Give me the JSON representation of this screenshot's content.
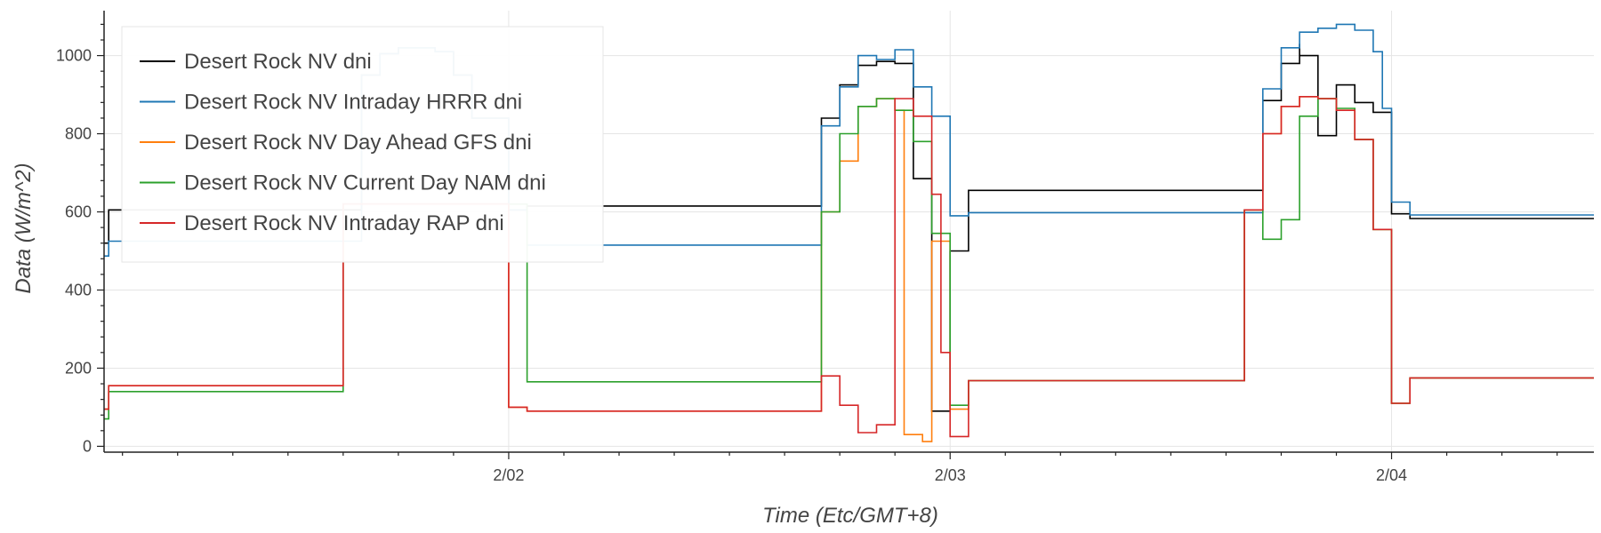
{
  "chart_data": {
    "type": "line",
    "step": true,
    "xlabel": "Time (Etc/GMT+8)",
    "ylabel": "Data (W/m^2)",
    "xlim": [
      "2020-02-01T02:00",
      "2020-02-04T11:00"
    ],
    "ylim": [
      -15,
      1115
    ],
    "x_ticks": [
      {
        "x": "2020-02-02T00:00",
        "label": "2/02"
      },
      {
        "x": "2020-02-03T00:00",
        "label": "2/03"
      },
      {
        "x": "2020-02-04T00:00",
        "label": "2/04"
      }
    ],
    "y_ticks": [
      0,
      200,
      400,
      600,
      800,
      1000
    ],
    "grid": true,
    "legend": {
      "position": "top-left"
    },
    "series": [
      {
        "name": "Desert Rock NV dni",
        "color": "#000000",
        "points": [
          [
            "2020-02-01T02:00",
            520
          ],
          [
            "2020-02-01T02:15",
            605
          ],
          [
            "2020-02-01T03:00",
            605
          ],
          [
            "2020-02-01T14:00",
            605
          ],
          [
            "2020-02-01T16:00",
            950
          ],
          [
            "2020-02-01T17:00",
            1005
          ],
          [
            "2020-02-01T18:00",
            1020
          ],
          [
            "2020-02-01T20:00",
            1010
          ],
          [
            "2020-02-01T21:00",
            950
          ],
          [
            "2020-02-01T22:00",
            840
          ],
          [
            "2020-02-02T00:00",
            605
          ],
          [
            "2020-02-02T01:00",
            615
          ],
          [
            "2020-02-02T17:00",
            615
          ],
          [
            "2020-02-02T17:00",
            840
          ],
          [
            "2020-02-02T18:00",
            925
          ],
          [
            "2020-02-02T19:00",
            975
          ],
          [
            "2020-02-02T20:00",
            985
          ],
          [
            "2020-02-02T21:00",
            980
          ],
          [
            "2020-02-02T22:00",
            685
          ],
          [
            "2020-02-02T23:00",
            90
          ],
          [
            "2020-02-03T00:00",
            450
          ],
          [
            "2020-02-03T00:00",
            500
          ],
          [
            "2020-02-03T01:00",
            655
          ],
          [
            "2020-02-03T16:00",
            655
          ],
          [
            "2020-02-03T17:00",
            885
          ],
          [
            "2020-02-03T18:00",
            980
          ],
          [
            "2020-02-03T19:00",
            1030
          ],
          [
            "2020-02-03T19:00",
            1000
          ],
          [
            "2020-02-03T20:00",
            1000
          ],
          [
            "2020-02-03T20:00",
            795
          ],
          [
            "2020-02-03T21:00",
            925
          ],
          [
            "2020-02-03T22:00",
            880
          ],
          [
            "2020-02-03T23:00",
            855
          ],
          [
            "2020-02-04T00:00",
            595
          ],
          [
            "2020-02-04T01:00",
            583
          ],
          [
            "2020-02-04T11:00",
            583
          ]
        ]
      },
      {
        "name": "Desert Rock NV Intraday HRRR dni",
        "color": "#1f77b4",
        "points": [
          [
            "2020-02-01T02:00",
            487
          ],
          [
            "2020-02-01T02:15",
            525
          ],
          [
            "2020-02-01T03:00",
            525
          ],
          [
            "2020-02-01T14:00",
            525
          ],
          [
            "2020-02-01T16:00",
            950
          ],
          [
            "2020-02-01T17:00",
            1005
          ],
          [
            "2020-02-01T18:00",
            1020
          ],
          [
            "2020-02-01T20:00",
            1010
          ],
          [
            "2020-02-01T21:00",
            950
          ],
          [
            "2020-02-01T22:00",
            840
          ],
          [
            "2020-02-02T00:00",
            605
          ],
          [
            "2020-02-02T01:00",
            515
          ],
          [
            "2020-02-02T17:00",
            515
          ],
          [
            "2020-02-02T17:00",
            820
          ],
          [
            "2020-02-02T18:00",
            920
          ],
          [
            "2020-02-02T19:00",
            1000
          ],
          [
            "2020-02-02T20:00",
            990
          ],
          [
            "2020-02-02T21:00",
            1015
          ],
          [
            "2020-02-02T22:00",
            920
          ],
          [
            "2020-02-02T23:00",
            845
          ],
          [
            "2020-02-03T00:00",
            590
          ],
          [
            "2020-02-03T01:00",
            598
          ],
          [
            "2020-02-03T16:00",
            598
          ],
          [
            "2020-02-03T17:00",
            915
          ],
          [
            "2020-02-03T18:00",
            1020
          ],
          [
            "2020-02-03T19:00",
            1060
          ],
          [
            "2020-02-03T20:00",
            1070
          ],
          [
            "2020-02-03T21:00",
            1080
          ],
          [
            "2020-02-03T22:00",
            1065
          ],
          [
            "2020-02-03T23:00",
            1010
          ],
          [
            "2020-02-03T23:30",
            865
          ],
          [
            "2020-02-04T00:00",
            625
          ],
          [
            "2020-02-04T01:00",
            592
          ],
          [
            "2020-02-04T11:00",
            592
          ]
        ]
      },
      {
        "name": "Desert Rock NV Day Ahead GFS dni",
        "color": "#ff7f0e",
        "points": [
          [
            "2020-02-01T02:00",
            95
          ],
          [
            "2020-02-01T02:15",
            155
          ],
          [
            "2020-02-01T03:00",
            155
          ],
          [
            "2020-02-01T15:00",
            155
          ],
          [
            "2020-02-01T15:00",
            620
          ],
          [
            "2020-02-02T00:00",
            620
          ],
          [
            "2020-02-02T00:00",
            100
          ],
          [
            "2020-02-02T01:00",
            90
          ],
          [
            "2020-02-02T17:00",
            90
          ],
          [
            "2020-02-02T17:00",
            600
          ],
          [
            "2020-02-02T18:00",
            730
          ],
          [
            "2020-02-02T19:00",
            870
          ],
          [
            "2020-02-02T20:00",
            890
          ],
          [
            "2020-02-02T21:00",
            860
          ],
          [
            "2020-02-02T21:30",
            30
          ],
          [
            "2020-02-02T22:30",
            12
          ],
          [
            "2020-02-02T23:00",
            525
          ],
          [
            "2020-02-03T00:00",
            95
          ],
          [
            "2020-02-03T01:00",
            168
          ],
          [
            "2020-02-03T16:00",
            168
          ],
          [
            "2020-02-03T16:00",
            605
          ],
          [
            "2020-02-03T17:00",
            800
          ],
          [
            "2020-02-03T18:00",
            870
          ],
          [
            "2020-02-03T19:00",
            895
          ],
          [
            "2020-02-03T20:00",
            890
          ],
          [
            "2020-02-03T21:00",
            860
          ],
          [
            "2020-02-03T22:00",
            785
          ],
          [
            "2020-02-03T23:00",
            555
          ],
          [
            "2020-02-04T00:00",
            110
          ],
          [
            "2020-02-04T01:00",
            175
          ],
          [
            "2020-02-04T11:00",
            175
          ]
        ]
      },
      {
        "name": "Desert Rock NV Current Day NAM dni",
        "color": "#2ca02c",
        "points": [
          [
            "2020-02-01T02:00",
            70
          ],
          [
            "2020-02-01T02:15",
            140
          ],
          [
            "2020-02-01T03:00",
            140
          ],
          [
            "2020-02-01T15:00",
            140
          ],
          [
            "2020-02-01T15:00",
            620
          ],
          [
            "2020-02-02T00:00",
            620
          ],
          [
            "2020-02-02T01:00",
            165
          ],
          [
            "2020-02-02T17:00",
            165
          ],
          [
            "2020-02-02T17:00",
            600
          ],
          [
            "2020-02-02T18:00",
            800
          ],
          [
            "2020-02-02T19:00",
            870
          ],
          [
            "2020-02-02T20:00",
            890
          ],
          [
            "2020-02-02T21:00",
            860
          ],
          [
            "2020-02-02T22:00",
            860
          ],
          [
            "2020-02-02T22:00",
            780
          ],
          [
            "2020-02-02T23:00",
            545
          ],
          [
            "2020-02-03T00:00",
            105
          ],
          [
            "2020-02-03T01:00",
            168
          ],
          [
            "2020-02-03T16:00",
            168
          ],
          [
            "2020-02-03T16:00",
            605
          ],
          [
            "2020-02-03T17:00",
            530
          ],
          [
            "2020-02-03T18:00",
            580
          ],
          [
            "2020-02-03T19:00",
            845
          ],
          [
            "2020-02-03T20:00",
            890
          ],
          [
            "2020-02-03T21:00",
            865
          ],
          [
            "2020-02-03T22:00",
            785
          ],
          [
            "2020-02-03T23:00",
            555
          ],
          [
            "2020-02-04T00:00",
            110
          ],
          [
            "2020-02-04T01:00",
            175
          ],
          [
            "2020-02-04T11:00",
            175
          ]
        ]
      },
      {
        "name": "Desert Rock NV Intraday RAP dni",
        "color": "#d62728",
        "points": [
          [
            "2020-02-01T02:00",
            95
          ],
          [
            "2020-02-01T02:15",
            155
          ],
          [
            "2020-02-01T03:00",
            155
          ],
          [
            "2020-02-01T15:00",
            155
          ],
          [
            "2020-02-01T15:00",
            620
          ],
          [
            "2020-02-02T00:00",
            620
          ],
          [
            "2020-02-02T00:00",
            100
          ],
          [
            "2020-02-02T01:00",
            90
          ],
          [
            "2020-02-02T17:00",
            90
          ],
          [
            "2020-02-02T17:00",
            180
          ],
          [
            "2020-02-02T18:00",
            105
          ],
          [
            "2020-02-02T19:00",
            35
          ],
          [
            "2020-02-02T20:00",
            55
          ],
          [
            "2020-02-02T21:00",
            890
          ],
          [
            "2020-02-02T22:00",
            845
          ],
          [
            "2020-02-02T23:00",
            645
          ],
          [
            "2020-02-02T23:30",
            240
          ],
          [
            "2020-02-03T00:00",
            25
          ],
          [
            "2020-02-03T01:00",
            168
          ],
          [
            "2020-02-03T16:00",
            168
          ],
          [
            "2020-02-03T16:00",
            605
          ],
          [
            "2020-02-03T17:00",
            800
          ],
          [
            "2020-02-03T18:00",
            870
          ],
          [
            "2020-02-03T19:00",
            895
          ],
          [
            "2020-02-03T20:00",
            890
          ],
          [
            "2020-02-03T21:00",
            860
          ],
          [
            "2020-02-03T22:00",
            785
          ],
          [
            "2020-02-03T23:00",
            555
          ],
          [
            "2020-02-04T00:00",
            110
          ],
          [
            "2020-02-04T01:00",
            175
          ],
          [
            "2020-02-04T11:00",
            175
          ]
        ]
      }
    ]
  }
}
